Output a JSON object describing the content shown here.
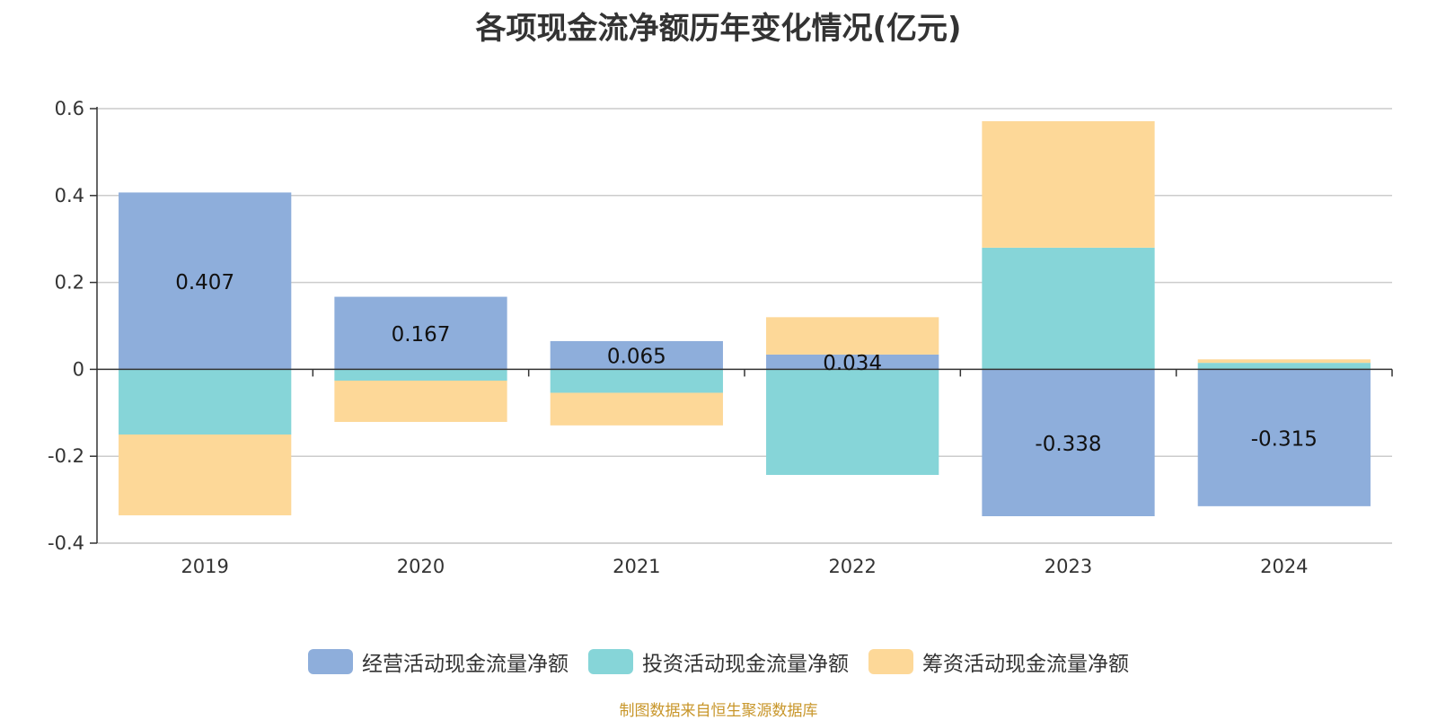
{
  "title": "各项现金流净额历年变化情况(亿元)",
  "source_note": "制图数据来自恒生聚源数据库",
  "chart_data": {
    "type": "bar",
    "stacked": true,
    "categories": [
      "2019",
      "2020",
      "2021",
      "2022",
      "2023",
      "2024"
    ],
    "series": [
      {
        "name": "经营活动现金流量净额",
        "color": "#8eaedb",
        "values": [
          0.407,
          0.167,
          0.065,
          0.034,
          -0.338,
          -0.315
        ]
      },
      {
        "name": "投资活动现金流量净额",
        "color": "#86d5d8",
        "values": [
          -0.15,
          -0.026,
          -0.054,
          -0.243,
          0.28,
          0.015
        ]
      },
      {
        "name": "筹资活动现金流量净额",
        "color": "#fdd898",
        "values": [
          -0.186,
          -0.095,
          -0.075,
          0.086,
          0.291,
          0.008
        ]
      }
    ],
    "data_labels": [
      "0.407",
      "0.167",
      "0.065",
      "0.034",
      "-0.338",
      "-0.315"
    ],
    "y_ticks": [
      {
        "value": 0.6,
        "label": "0.6"
      },
      {
        "value": 0.4,
        "label": "0.4"
      },
      {
        "value": 0.2,
        "label": "0.2"
      },
      {
        "value": 0,
        "label": "0"
      },
      {
        "value": -0.2,
        "label": "-0.2"
      },
      {
        "value": -0.4,
        "label": "-0.4"
      }
    ],
    "ylim": [
      -0.4,
      0.6
    ],
    "grid": true,
    "legend_position": "bottom"
  }
}
